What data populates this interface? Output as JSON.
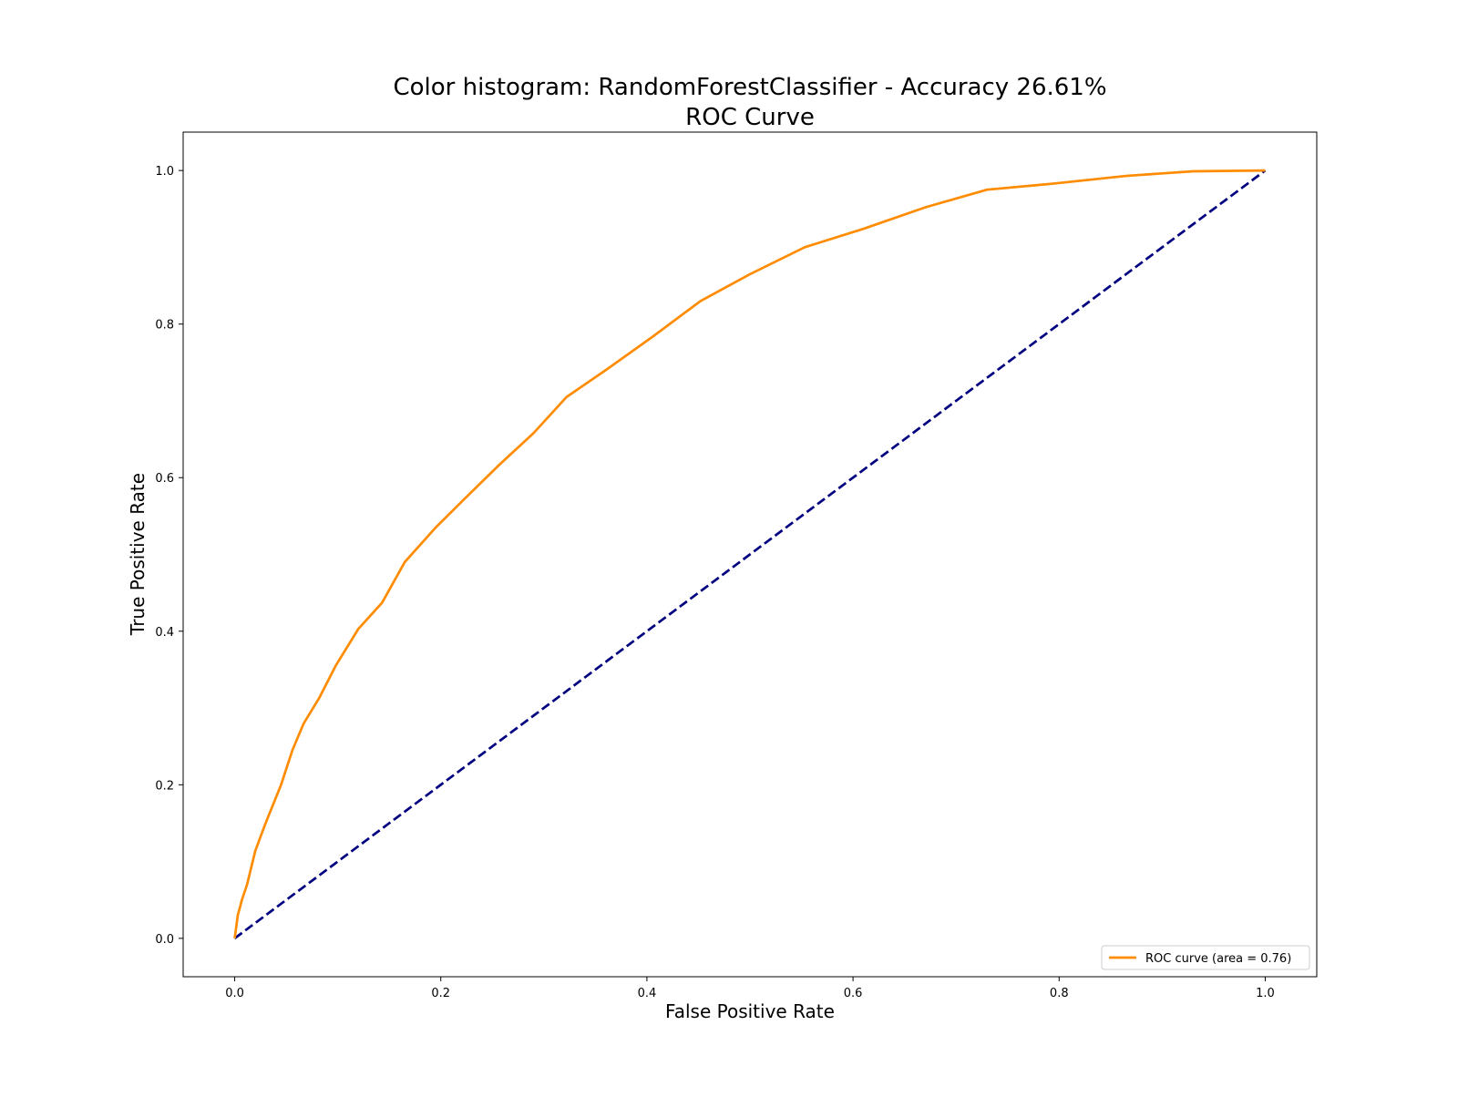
{
  "chart_data": {
    "type": "line",
    "title": "Color histogram: RandomForestClassifier - Accuracy 26.61%",
    "subtitle": "ROC Curve",
    "xlabel": "False Positive Rate",
    "ylabel": "True Positive Rate",
    "xlim": [
      -0.05,
      1.05
    ],
    "ylim": [
      -0.05,
      1.05
    ],
    "x_ticks": [
      0.0,
      0.2,
      0.4,
      0.6,
      0.8,
      1.0
    ],
    "x_tick_labels": [
      "0.0",
      "0.2",
      "0.4",
      "0.6",
      "0.8",
      "1.0"
    ],
    "y_ticks": [
      0.0,
      0.2,
      0.4,
      0.6,
      0.8,
      1.0
    ],
    "y_tick_labels": [
      "0.0",
      "0.2",
      "0.4",
      "0.6",
      "0.8",
      "1.0"
    ],
    "grid": false,
    "legend_position": "lower-right",
    "series": [
      {
        "name": "ROC curve (area = 0.76)",
        "color": "#ff8c00",
        "style": "solid",
        "x": [
          0.0,
          0.003,
          0.007,
          0.012,
          0.02,
          0.03,
          0.045,
          0.056,
          0.067,
          0.082,
          0.098,
          0.12,
          0.143,
          0.165,
          0.195,
          0.225,
          0.257,
          0.29,
          0.322,
          0.36,
          0.405,
          0.452,
          0.5,
          0.553,
          0.61,
          0.67,
          0.73,
          0.795,
          0.865,
          0.93,
          1.0
        ],
        "y": [
          0.0,
          0.03,
          0.05,
          0.07,
          0.114,
          0.15,
          0.2,
          0.245,
          0.28,
          0.313,
          0.355,
          0.403,
          0.437,
          0.49,
          0.535,
          0.575,
          0.617,
          0.658,
          0.705,
          0.74,
          0.783,
          0.83,
          0.865,
          0.9,
          0.924,
          0.952,
          0.975,
          0.983,
          0.993,
          0.999,
          1.0
        ]
      },
      {
        "name": "",
        "color": "#000080",
        "style": "dashed",
        "x": [
          0.0,
          1.0
        ],
        "y": [
          0.0,
          1.0
        ]
      }
    ]
  }
}
